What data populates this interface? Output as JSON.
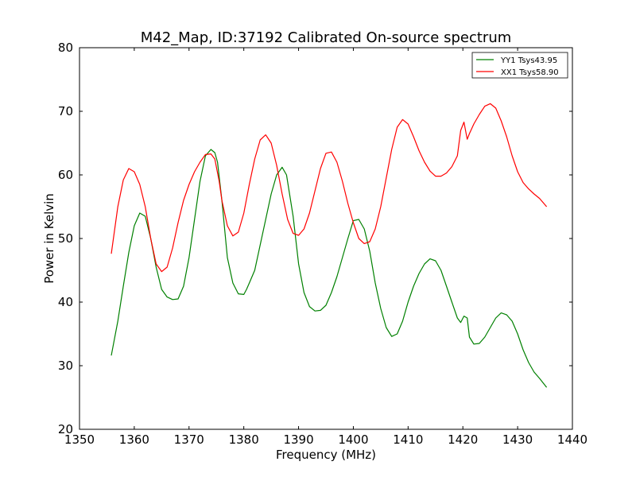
{
  "chart_data": {
    "type": "line",
    "title": "M42_Map, ID:37192 Calibrated On-source spectrum",
    "xlabel": "Frequency (MHz)",
    "ylabel": "Power in Kelvin",
    "xlim": [
      1350,
      1440
    ],
    "ylim": [
      20,
      80
    ],
    "xticks": [
      1350,
      1360,
      1370,
      1380,
      1390,
      1400,
      1410,
      1420,
      1430,
      1440
    ],
    "yticks": [
      20,
      30,
      40,
      50,
      60,
      70,
      80
    ],
    "grid": false,
    "legend_position": "top-right",
    "series": [
      {
        "name": "YY1 Tsys43.95",
        "color": "#008000",
        "x": [
          1355.8,
          1357,
          1358,
          1359,
          1360,
          1361,
          1362,
          1363,
          1364,
          1365,
          1366,
          1367,
          1368,
          1369,
          1370,
          1371,
          1372,
          1373,
          1374,
          1374.7,
          1375.2,
          1376,
          1377,
          1378,
          1379,
          1380,
          1380.5,
          1381,
          1382,
          1383,
          1384,
          1385,
          1386,
          1387,
          1387.8,
          1389,
          1390,
          1391,
          1392,
          1393,
          1394,
          1395,
          1396,
          1397,
          1398,
          1399,
          1400,
          1401,
          1402,
          1403,
          1404,
          1405,
          1406,
          1407,
          1408,
          1409,
          1410,
          1411,
          1412,
          1413,
          1414,
          1415,
          1416,
          1417,
          1418,
          1419,
          1419.6,
          1420.2,
          1420.8,
          1421.2,
          1422,
          1423,
          1424,
          1425,
          1426,
          1427,
          1428,
          1429,
          1430,
          1431,
          1432,
          1433,
          1434,
          1435.3
        ],
        "values": [
          31.6,
          37.0,
          42.5,
          47.8,
          52.0,
          54.0,
          53.5,
          50.0,
          45.5,
          42.0,
          40.8,
          40.4,
          40.5,
          42.5,
          47.0,
          53.0,
          59.0,
          63.0,
          64.0,
          63.5,
          62.0,
          56.0,
          47.0,
          43.0,
          41.3,
          41.2,
          42.0,
          43.0,
          45.0,
          49.0,
          53.0,
          57.0,
          60.0,
          61.2,
          60.0,
          53.5,
          46.0,
          41.5,
          39.3,
          38.6,
          38.7,
          39.5,
          41.5,
          44.0,
          47.0,
          50.0,
          52.8,
          53.0,
          51.5,
          48.0,
          43.0,
          39.0,
          36.0,
          34.6,
          35.0,
          37.0,
          40.0,
          42.5,
          44.5,
          46.0,
          46.8,
          46.5,
          45.0,
          42.5,
          40.0,
          37.5,
          36.8,
          37.8,
          37.5,
          34.5,
          33.4,
          33.5,
          34.5,
          36.0,
          37.5,
          38.3,
          38.0,
          37.0,
          35.0,
          32.5,
          30.5,
          29.0,
          28.0,
          26.6
        ]
      },
      {
        "name": "XX1 Tsys58.90",
        "color": "#ff0000",
        "x": [
          1355.8,
          1357,
          1358,
          1359,
          1360,
          1361,
          1362,
          1363,
          1364,
          1365,
          1366,
          1367,
          1368,
          1369,
          1370,
          1371,
          1372,
          1373,
          1374,
          1374.7,
          1375.5,
          1376,
          1377,
          1378,
          1379,
          1380,
          1381,
          1382,
          1383,
          1384,
          1385,
          1386,
          1387,
          1388,
          1389,
          1390,
          1391,
          1392,
          1393,
          1394,
          1395,
          1396,
          1397,
          1398,
          1399,
          1400,
          1401,
          1402,
          1403,
          1404,
          1405,
          1406,
          1407,
          1408,
          1409,
          1410,
          1411,
          1412,
          1413,
          1414,
          1415,
          1416,
          1417,
          1418,
          1419,
          1419.6,
          1420.2,
          1420.8,
          1421.2,
          1422,
          1423,
          1424,
          1425,
          1426,
          1427,
          1428,
          1429,
          1430,
          1431,
          1432,
          1433,
          1434,
          1435.3
        ],
        "values": [
          47.6,
          55.0,
          59.2,
          61.0,
          60.5,
          58.5,
          55.0,
          50.0,
          46.0,
          44.8,
          45.5,
          48.5,
          52.5,
          56.0,
          58.5,
          60.5,
          62.0,
          63.2,
          63.3,
          62.5,
          59.0,
          56.0,
          52.0,
          50.4,
          51.0,
          54.0,
          58.5,
          62.5,
          65.5,
          66.3,
          65.0,
          61.5,
          57.0,
          53.0,
          50.8,
          50.5,
          51.5,
          54.0,
          57.5,
          61.0,
          63.4,
          63.6,
          62.0,
          59.0,
          55.5,
          52.5,
          50.0,
          49.2,
          49.5,
          51.5,
          55.0,
          59.5,
          64.0,
          67.5,
          68.7,
          68.0,
          66.0,
          63.8,
          62.0,
          60.6,
          59.8,
          59.8,
          60.3,
          61.3,
          63.0,
          67.0,
          68.3,
          65.6,
          66.5,
          68.0,
          69.5,
          70.8,
          71.2,
          70.5,
          68.5,
          66.0,
          63.0,
          60.5,
          58.8,
          57.8,
          57.0,
          56.3,
          55.0
        ]
      }
    ]
  }
}
